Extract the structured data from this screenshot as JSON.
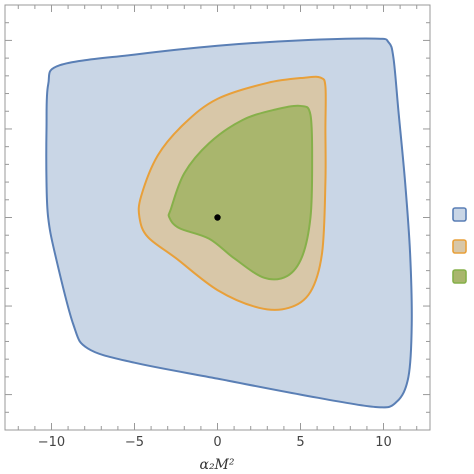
{
  "chart_data": {
    "type": "contour",
    "title": "",
    "xlabel": "α₂M²",
    "ylabel": "",
    "xlim": [
      -12.8,
      12.8
    ],
    "ylim": [
      -12,
      12
    ],
    "x_ticks": [
      -10,
      -5,
      0,
      5,
      10
    ],
    "y_tick_labels": [],
    "grid": false,
    "legend_position": "right",
    "legend_labels": [
      "",
      "",
      ""
    ],
    "best_fit_point": {
      "x": 0,
      "y": 0
    },
    "series": [
      {
        "color": "#5a7fb5",
        "fill": "#c9d6e6",
        "polygon": [
          [
            -9.5,
            8.6
          ],
          [
            -5,
            9.2
          ],
          [
            0,
            9.7
          ],
          [
            5,
            10.0
          ],
          [
            9.5,
            10.1
          ],
          [
            10.3,
            9.9
          ],
          [
            10.6,
            9.0
          ],
          [
            10.9,
            6
          ],
          [
            11.3,
            2
          ],
          [
            11.6,
            -2
          ],
          [
            11.7,
            -6
          ],
          [
            11.5,
            -9
          ],
          [
            10.8,
            -10.4
          ],
          [
            9.5,
            -10.7
          ],
          [
            5,
            -10.0
          ],
          [
            0,
            -9.1
          ],
          [
            -5,
            -8.2
          ],
          [
            -7.8,
            -7.4
          ],
          [
            -8.7,
            -6.0
          ],
          [
            -9.8,
            -2
          ],
          [
            -10.2,
            0
          ],
          [
            -10.3,
            2
          ],
          [
            -10.3,
            5
          ],
          [
            -10.2,
            7.5
          ]
        ]
      },
      {
        "color": "#e8a03a",
        "fill": "#d8c7a8",
        "polygon": [
          [
            -4.6,
            1.2
          ],
          [
            -3.6,
            3.5
          ],
          [
            -2,
            5.3
          ],
          [
            0,
            6.7
          ],
          [
            3,
            7.6
          ],
          [
            5.3,
            7.9
          ],
          [
            6.2,
            7.9
          ],
          [
            6.5,
            7.4
          ],
          [
            6.5,
            5
          ],
          [
            6.5,
            2
          ],
          [
            6.3,
            -2
          ],
          [
            5.6,
            -4.2
          ],
          [
            4.3,
            -5.1
          ],
          [
            2.5,
            -5.1
          ],
          [
            0,
            -4.1
          ],
          [
            -2.5,
            -2.3
          ],
          [
            -4.2,
            -1.1
          ],
          [
            -4.7,
            0
          ]
        ]
      },
      {
        "color": "#86b04a",
        "fill": "#a9b66d",
        "polygon": [
          [
            -2.8,
            0.5
          ],
          [
            -2,
            2.5
          ],
          [
            -0.5,
            4.2
          ],
          [
            1.5,
            5.5
          ],
          [
            3.5,
            6.1
          ],
          [
            5,
            6.3
          ],
          [
            5.6,
            5.8
          ],
          [
            5.7,
            3
          ],
          [
            5.6,
            0
          ],
          [
            5.1,
            -2.2
          ],
          [
            4.2,
            -3.3
          ],
          [
            2.8,
            -3.4
          ],
          [
            1,
            -2.3
          ],
          [
            -0.5,
            -1.2
          ],
          [
            -2.3,
            -0.6
          ],
          [
            -2.9,
            0
          ]
        ]
      }
    ]
  }
}
